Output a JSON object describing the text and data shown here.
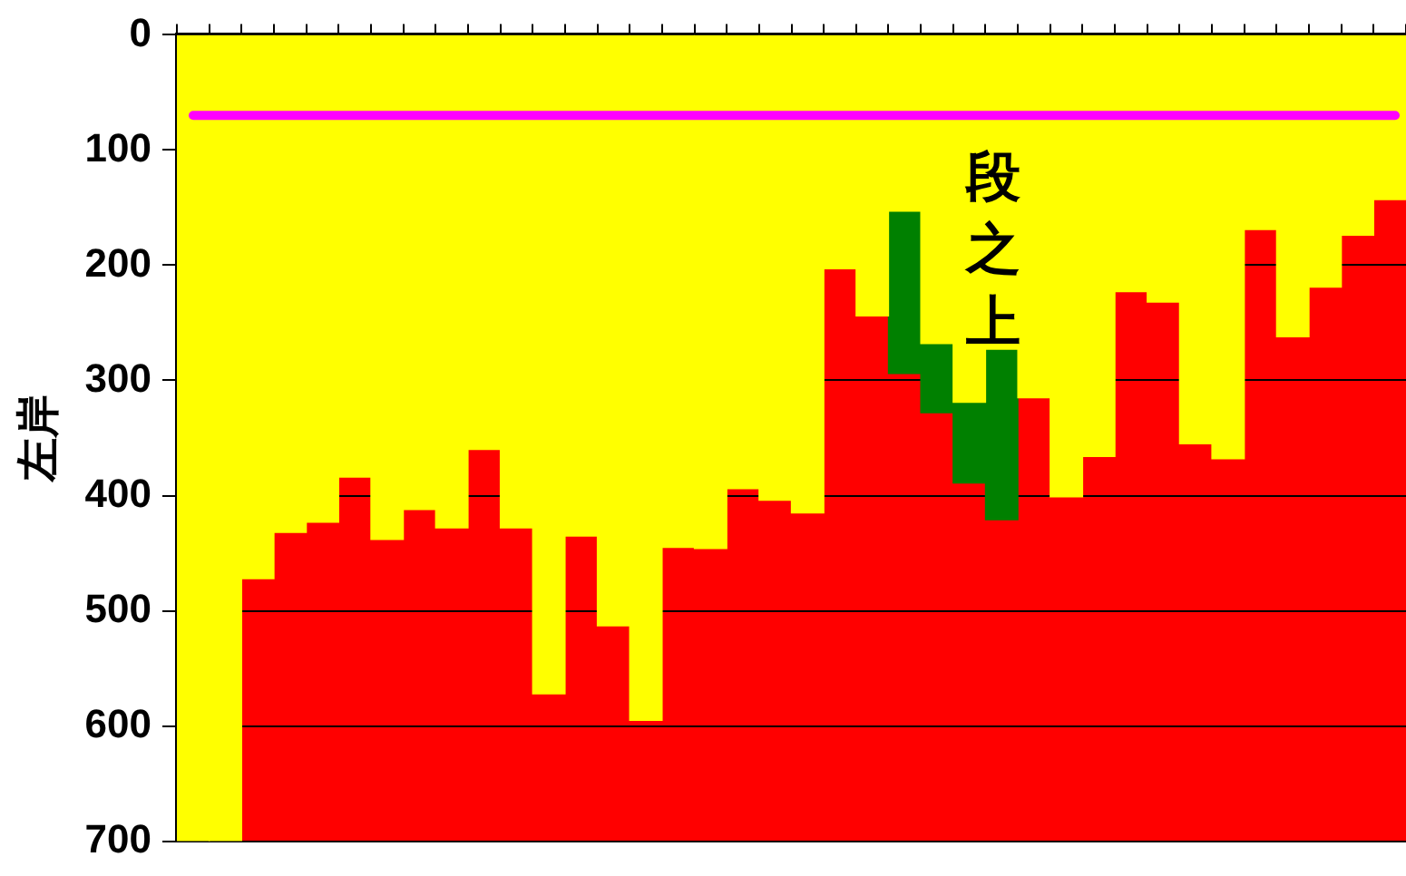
{
  "chart_data": {
    "type": "bar",
    "ylabel": "左岸",
    "categories": [
      null,
      null,
      null,
      null,
      null,
      null,
      null,
      null,
      null,
      null,
      null,
      null,
      null,
      null,
      null,
      null,
      null,
      null,
      null,
      null,
      null,
      null,
      null,
      null,
      null,
      null,
      null,
      null,
      null,
      null,
      null,
      null,
      null,
      null,
      null,
      null,
      null,
      null
    ],
    "series": [
      {
        "color": "#ffff00",
        "values": [
          700,
          700,
          472,
          432,
          423,
          384,
          438,
          412,
          428,
          360,
          428,
          572,
          435,
          513,
          595,
          445,
          446,
          394,
          404,
          415,
          203,
          244,
          153,
          268,
          319,
          273,
          315,
          401,
          366,
          223,
          232,
          355,
          368,
          169,
          262,
          219,
          174,
          143
        ]
      },
      {
        "color": "#008000",
        "base": [
          null,
          null,
          null,
          null,
          null,
          null,
          null,
          null,
          null,
          null,
          null,
          null,
          null,
          null,
          null,
          null,
          null,
          null,
          null,
          null,
          null,
          null,
          153,
          268,
          319,
          273,
          null,
          null,
          null,
          null,
          null,
          null,
          null,
          null,
          null,
          null,
          null,
          null
        ],
        "values": [
          null,
          null,
          null,
          null,
          null,
          null,
          null,
          null,
          null,
          null,
          null,
          null,
          null,
          null,
          null,
          null,
          null,
          null,
          null,
          null,
          null,
          null,
          141,
          60,
          70,
          148,
          null,
          null,
          null,
          null,
          null,
          null,
          null,
          null,
          null,
          null,
          null,
          null
        ]
      }
    ],
    "ylim": [
      700,
      0
    ],
    "yticks": [
      0,
      100,
      200,
      300,
      400,
      500,
      600,
      700
    ],
    "grid": "y",
    "legend": false,
    "tick_labels": "y",
    "ref_lines": [
      {
        "axis": "y",
        "value": 70,
        "color": "#ff00ff"
      }
    ],
    "annotations": [
      "段之上"
    ]
  }
}
